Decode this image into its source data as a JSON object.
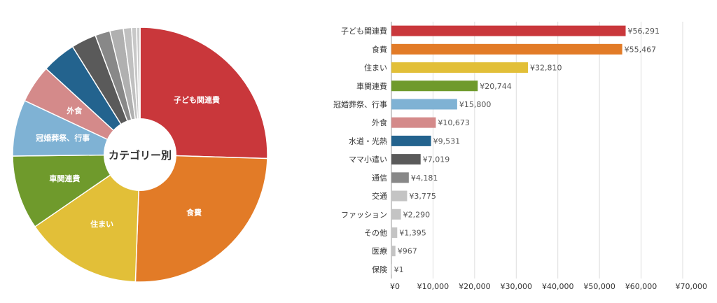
{
  "chart_data": [
    {
      "type": "pie",
      "center_label": "カテゴリー別",
      "categories": [
        "子ども関連費",
        "食費",
        "住まい",
        "車関連費",
        "冠婚葬祭、行事",
        "外食",
        "水道・光熱",
        "ママ小遣い",
        "通信",
        "交通",
        "ファッション",
        "その他",
        "医療",
        "保険"
      ],
      "values": [
        56291,
        55467,
        32810,
        20744,
        15800,
        10673,
        9531,
        7019,
        4181,
        3775,
        2290,
        1395,
        967,
        1
      ],
      "labeled_slices": [
        "子ども関連費",
        "食費",
        "住まい",
        "車関連費",
        "冠婚葬祭、行事",
        "外食"
      ],
      "colors": [
        "#c9373b",
        "#e27b27",
        "#e2bf38",
        "#6f9a2c",
        "#7fb2d4",
        "#d48a8a",
        "#23638e",
        "#5a5a5a",
        "#888888",
        "#b0b0b0",
        "#c0c0c0",
        "#c8c8c8",
        "#cccccc",
        "#d0d0d0"
      ]
    },
    {
      "type": "bar",
      "orientation": "horizontal",
      "categories": [
        "子ども関連費",
        "食費",
        "住まい",
        "車関連費",
        "冠婚葬祭、行事",
        "外食",
        "水道・光熱",
        "ママ小遣い",
        "通信",
        "交通",
        "ファッション",
        "その他",
        "医療",
        "保険"
      ],
      "values": [
        56291,
        55467,
        32810,
        20744,
        15800,
        10673,
        9531,
        7019,
        4181,
        3775,
        2290,
        1395,
        967,
        1
      ],
      "value_labels": [
        "¥56,291",
        "¥55,467",
        "¥32,810",
        "¥20,744",
        "¥15,800",
        "¥10,673",
        "¥9,531",
        "¥7,019",
        "¥4,181",
        "¥3,775",
        "¥2,290",
        "¥1,395",
        "¥967",
        "¥1"
      ],
      "colors": [
        "#c9373b",
        "#e27b27",
        "#e2bf38",
        "#6f9a2c",
        "#7fb2d4",
        "#d48a8a",
        "#23638e",
        "#5a5a5a",
        "#888888",
        "#c4c4c4",
        "#c4c4c4",
        "#c4c4c4",
        "#c4c4c4",
        "#c4c4c4"
      ],
      "xlim": [
        0,
        70000
      ],
      "x_ticks": [
        0,
        10000,
        20000,
        30000,
        40000,
        50000,
        60000,
        70000
      ],
      "x_tick_labels": [
        "¥0",
        "¥10,000",
        "¥20,000",
        "¥30,000",
        "¥40,000",
        "¥50,000",
        "¥60,000",
        "¥70,000"
      ],
      "grid": true
    }
  ]
}
